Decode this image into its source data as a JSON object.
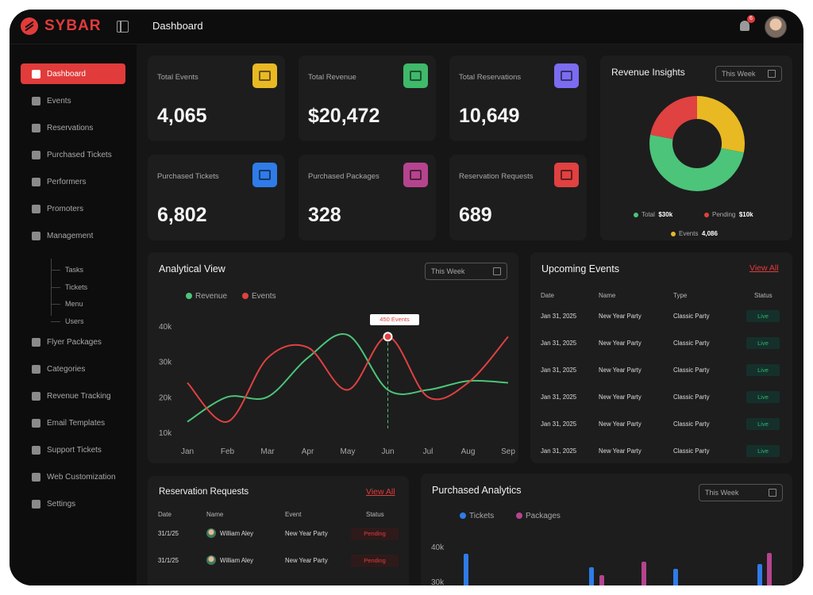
{
  "brand": {
    "name": "SYBAR"
  },
  "header": {
    "title": "Dashboard",
    "notification_count": "6"
  },
  "sidebar": {
    "items": [
      {
        "label": "Dashboard",
        "icon": "dashboard-icon"
      },
      {
        "label": "Events",
        "icon": "calendar-icon"
      },
      {
        "label": "Reservations",
        "icon": "reservation-icon"
      },
      {
        "label": "Purchased Tickets",
        "icon": "ticket-icon"
      },
      {
        "label": "Performers",
        "icon": "performers-icon"
      },
      {
        "label": "Promoters",
        "icon": "promoters-icon"
      },
      {
        "label": "Management",
        "icon": "management-icon"
      },
      {
        "label": "Flyer Packages",
        "icon": "flyer-icon"
      },
      {
        "label": "Categories",
        "icon": "categories-icon"
      },
      {
        "label": "Revenue Tracking",
        "icon": "revenue-icon"
      },
      {
        "label": "Email Templates",
        "icon": "email-icon"
      },
      {
        "label": "Support Tickets",
        "icon": "support-icon"
      },
      {
        "label": "Web Customization",
        "icon": "web-icon"
      },
      {
        "label": "Settings",
        "icon": "settings-icon"
      }
    ],
    "management_sub": [
      "Tasks",
      "Tickets",
      "Menu",
      "Users"
    ]
  },
  "stats": [
    {
      "label": "Total Events",
      "value": "4,065",
      "icon": "calendar-icon",
      "color": "#e8b923"
    },
    {
      "label": "Total Revenue",
      "value": "$20,472",
      "icon": "money-bag-icon",
      "color": "#3fb96a"
    },
    {
      "label": "Total Reservations",
      "value": "10,649",
      "icon": "reservation-icon",
      "color": "#7b6cf0"
    },
    {
      "label": "Purchased Tickets",
      "value": "6,802",
      "icon": "ticket-icon",
      "color": "#2f7be8"
    },
    {
      "label": "Purchased Packages",
      "value": "328",
      "icon": "package-icon",
      "color": "#b5448e"
    },
    {
      "label": "Reservation Requests",
      "value": "689",
      "icon": "request-icon",
      "color": "#e04141"
    }
  ],
  "revenue_insights": {
    "title": "Revenue Insights",
    "range": "This Week",
    "legend": [
      {
        "name": "Total",
        "value": "$30k",
        "color": "#4cc47a"
      },
      {
        "name": "Pending",
        "value": "$10k",
        "color": "#e04141"
      },
      {
        "name": "Events",
        "value": "4,086",
        "color": "#e8b923"
      }
    ]
  },
  "analytical_view": {
    "title": "Analytical View",
    "range": "This Week",
    "tooltip": "450 Events",
    "legend": [
      {
        "name": "Revenue",
        "color": "#4cc47a"
      },
      {
        "name": "Events",
        "color": "#e04141"
      }
    ]
  },
  "upcoming_events": {
    "title": "Upcoming Events",
    "view_all": "View All",
    "headers": [
      "Date",
      "Name",
      "Type",
      "Status"
    ],
    "rows": [
      [
        "Jan 31, 2025",
        "New Year Party",
        "Classic Party",
        "Live"
      ],
      [
        "Jan 31, 2025",
        "New Year Party",
        "Classic Party",
        "Live"
      ],
      [
        "Jan 31, 2025",
        "New Year Party",
        "Classic Party",
        "Live"
      ],
      [
        "Jan 31, 2025",
        "New Year Party",
        "Classic Party",
        "Live"
      ],
      [
        "Jan 31, 2025",
        "New Year Party",
        "Classic Party",
        "Live"
      ],
      [
        "Jan 31, 2025",
        "New Year Party",
        "Classic Party",
        "Live"
      ]
    ]
  },
  "reservation_requests": {
    "title": "Reservation Requests",
    "view_all": "View All",
    "headers": [
      "Date",
      "Name",
      "Event",
      "Status"
    ],
    "rows": [
      [
        "31/1/25",
        "William Aley",
        "New Year Party",
        "Pending"
      ],
      [
        "31/1/25",
        "William Aley",
        "New Year Party",
        "Pending"
      ]
    ]
  },
  "purchased_analytics": {
    "title": "Purchased Analytics",
    "range": "This Week",
    "legend": [
      {
        "name": "Tickets",
        "color": "#2f7be8"
      },
      {
        "name": "Packages",
        "color": "#b5448e"
      }
    ]
  },
  "chart_data": [
    {
      "type": "pie",
      "title": "Revenue Insights",
      "labels": [
        "Total",
        "Pending",
        "Events"
      ],
      "values": [
        0.5,
        0.22,
        0.28
      ],
      "colors": [
        "#4cc47a",
        "#e04141",
        "#e8b923"
      ]
    },
    {
      "type": "line",
      "title": "Analytical View",
      "categories": [
        "Jan",
        "Feb",
        "Mar",
        "Apr",
        "May",
        "Jun",
        "Jul",
        "Aug",
        "Sep"
      ],
      "yticks": [
        "40k",
        "30k",
        "20k",
        "10k"
      ],
      "ylim": [
        10000,
        40000
      ],
      "series": [
        {
          "name": "Revenue",
          "color": "#4cc47a",
          "values": [
            13000,
            20000,
            20000,
            31000,
            37500,
            22000,
            22000,
            24500,
            24000
          ]
        },
        {
          "name": "Events",
          "color": "#e04141",
          "values": [
            24000,
            13000,
            31000,
            34000,
            22000,
            37000,
            20000,
            24000,
            37000
          ]
        }
      ]
    },
    {
      "type": "bar",
      "title": "Purchased Analytics",
      "yticks": [
        "40k",
        "30k"
      ],
      "series": [
        {
          "name": "Tickets",
          "color": "#2f7be8"
        },
        {
          "name": "Packages",
          "color": "#b5448e"
        }
      ]
    }
  ]
}
